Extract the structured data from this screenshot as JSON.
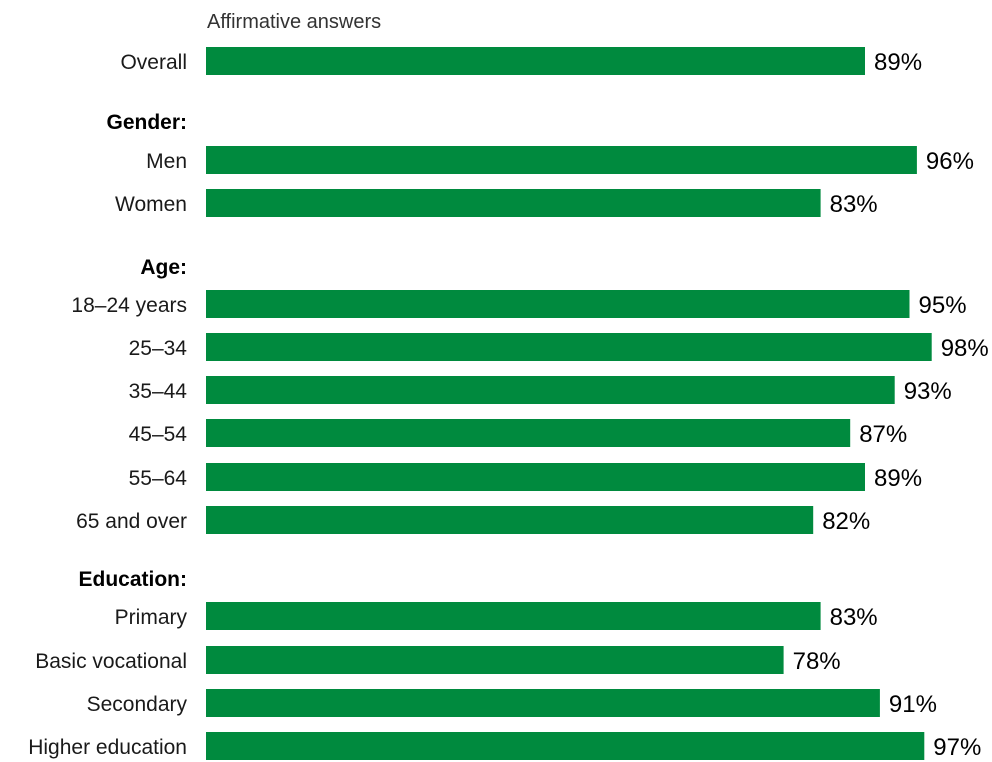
{
  "chart_data": {
    "type": "bar",
    "orientation": "horizontal",
    "subtitle": "Affirmative answers",
    "bar_color": "#008a3e",
    "xlim": [
      0,
      100
    ],
    "grid": false,
    "rows": [
      {
        "kind": "bar",
        "label": "Overall",
        "value": 89,
        "value_label": "89%"
      },
      {
        "kind": "group",
        "label": "Gender:"
      },
      {
        "kind": "bar",
        "label": "Men",
        "value": 96,
        "value_label": "96%"
      },
      {
        "kind": "bar",
        "label": "Women",
        "value": 83,
        "value_label": "83%"
      },
      {
        "kind": "group",
        "label": "Age:"
      },
      {
        "kind": "bar",
        "label": "18–24 years",
        "value": 95,
        "value_label": "95%"
      },
      {
        "kind": "bar",
        "label": "25–34",
        "value": 98,
        "value_label": "98%"
      },
      {
        "kind": "bar",
        "label": "35–44",
        "value": 93,
        "value_label": "93%"
      },
      {
        "kind": "bar",
        "label": "45–54",
        "value": 87,
        "value_label": "87%"
      },
      {
        "kind": "bar",
        "label": "55–64",
        "value": 89,
        "value_label": "89%"
      },
      {
        "kind": "bar",
        "label": "65 and over",
        "value": 82,
        "value_label": "82%"
      },
      {
        "kind": "group",
        "label": "Education:"
      },
      {
        "kind": "bar",
        "label": "Primary",
        "value": 83,
        "value_label": "83%"
      },
      {
        "kind": "bar",
        "label": "Basic vocational",
        "value": 78,
        "value_label": "78%"
      },
      {
        "kind": "bar",
        "label": "Secondary",
        "value": 91,
        "value_label": "91%"
      },
      {
        "kind": "bar",
        "label": "Higher education",
        "value": 97,
        "value_label": "97%"
      }
    ]
  }
}
